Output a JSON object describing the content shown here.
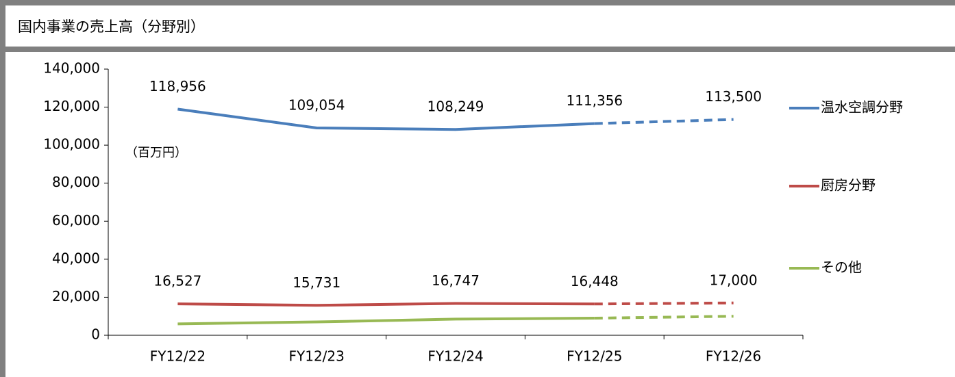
{
  "chart_data": {
    "type": "line",
    "title": "国内事業の売上高（分野別）",
    "unit_label": "（百万円）",
    "categories": [
      "FY12/22",
      "FY12/23",
      "FY12/24",
      "FY12/25",
      "FY12/26"
    ],
    "dashed_from": 3,
    "series": [
      {
        "name": "温水空調分野",
        "color": "#4a7ebb",
        "values": [
          118956,
          109054,
          108249,
          111356,
          113500
        ],
        "value_labels": [
          "118,956",
          "109,054",
          "108,249",
          "111,356",
          "113,500"
        ]
      },
      {
        "name": "厨房分野",
        "color": "#be4b48",
        "values": [
          16527,
          15731,
          16747,
          16448,
          17000
        ],
        "value_labels": [
          "16,527",
          "15,731",
          "16,747",
          "16,448",
          "17,000"
        ]
      },
      {
        "name": "その他",
        "color": "#98b954",
        "values": [
          6000,
          7000,
          8500,
          9000,
          10000
        ]
      }
    ],
    "ylim": [
      0,
      140000
    ],
    "yticks": [
      0,
      {
        "value": 20000,
        "label": "20,000"
      },
      {
        "value": 40000,
        "label": "40,000"
      },
      {
        "value": 60000,
        "label": "60,000"
      },
      {
        "value": 80000,
        "label": "80,000"
      },
      {
        "value": 100000,
        "label": "100,000"
      },
      {
        "value": 120000,
        "label": "120,000"
      },
      {
        "value": 140000,
        "label": "140,000"
      }
    ],
    "legend": "right"
  }
}
